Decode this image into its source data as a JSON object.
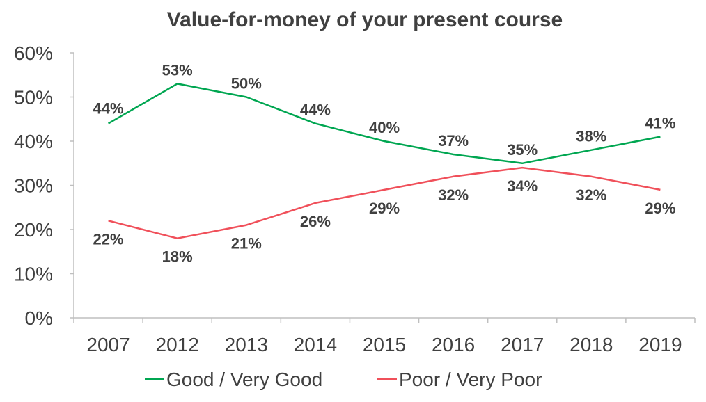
{
  "chart_data": {
    "type": "line",
    "title": "Value-for-money of your present course",
    "categories": [
      "2007",
      "2012",
      "2013",
      "2014",
      "2015",
      "2016",
      "2017",
      "2018",
      "2019"
    ],
    "yticks": [
      "0%",
      "10%",
      "20%",
      "30%",
      "40%",
      "50%",
      "60%"
    ],
    "ylim": [
      0,
      60
    ],
    "grid": false,
    "legend_position": "bottom",
    "series": [
      {
        "name": "Good / Very Good",
        "color": "#00A651",
        "values": [
          44,
          53,
          50,
          44,
          40,
          37,
          35,
          38,
          41
        ],
        "labels": [
          "44%",
          "53%",
          "50%",
          "44%",
          "40%",
          "37%",
          "35%",
          "38%",
          "41%"
        ]
      },
      {
        "name": "Poor / Very Poor",
        "color": "#F0505A",
        "values": [
          22,
          18,
          21,
          26,
          29,
          32,
          34,
          32,
          29
        ],
        "labels": [
          "22%",
          "18%",
          "21%",
          "26%",
          "29%",
          "32%",
          "34%",
          "32%",
          "29%"
        ]
      }
    ]
  }
}
